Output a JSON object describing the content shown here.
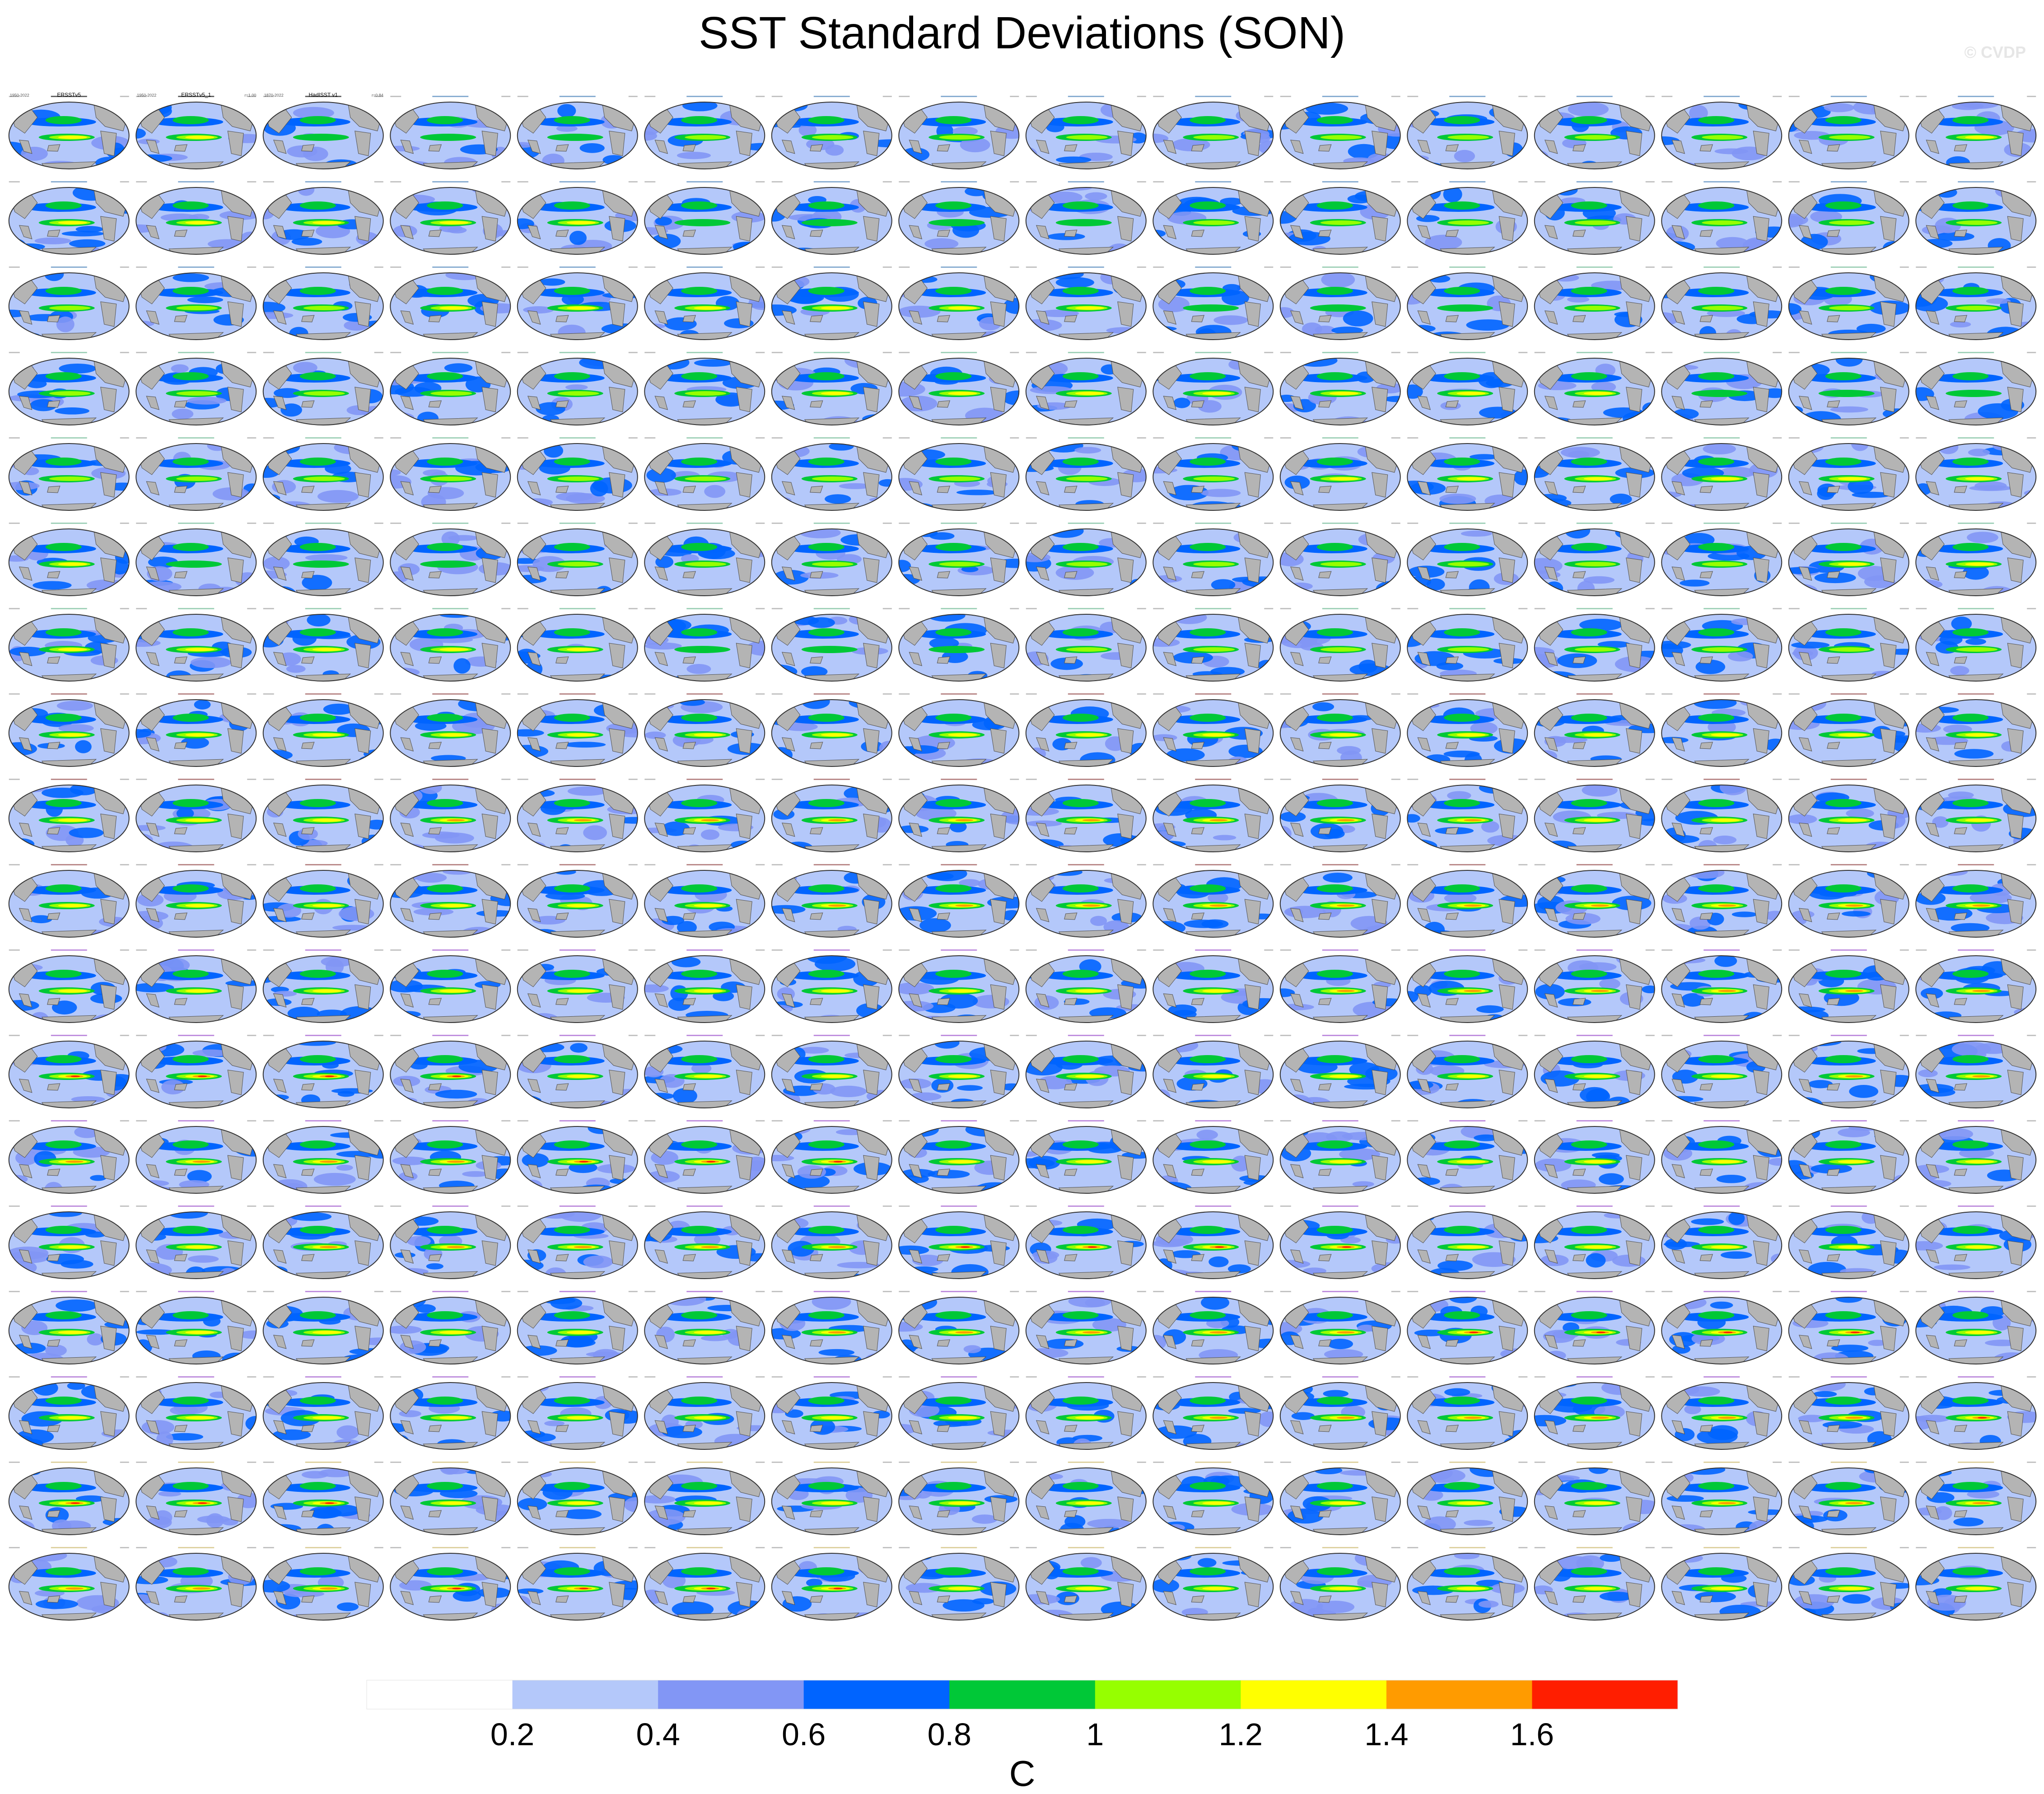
{
  "page": {
    "title": "SST Standard Deviations (SON)",
    "watermark": "© CVDP"
  },
  "colors": {
    "ocean_levels": [
      "#ffffff",
      "#b4c8fa",
      "#8296f5",
      "#0064ff",
      "#00c837",
      "#96ff00",
      "#ffff00",
      "#ff9b00",
      "#ff1e00",
      "#c80000"
    ],
    "land": "#b4b4b4",
    "coast": "#505050",
    "obs_label": "#000000",
    "model_label": "#3c78b4",
    "canesm_label": "#64b48c",
    "cesm1_label": "#8c3c3c",
    "cesm2_label": "#9646c8",
    "other_label": "#c8b464"
  },
  "chart_data": {
    "type": "heatmap",
    "title": "SST Standard Deviations (SON)",
    "grid": {
      "rows": 18,
      "cols": 16
    },
    "panels_note": "Small-multiple global maps of SST standard deviation; first three panels are observations (ERSSTv5, ERSSTv5.1, HadISST v1), remainder are model ensemble members.",
    "observation_panels": [
      {
        "label": "ERSSTv5",
        "years": "1950-2022"
      },
      {
        "label": "ERSSTv5_1",
        "years": "1950-2022",
        "value": "r=1.00"
      },
      {
        "label": "HadISST v1",
        "years": "1870-2022",
        "value": "r=0.84"
      }
    ],
    "colorbar": {
      "levels": [
        0.2,
        0.4,
        0.6,
        0.8,
        1,
        1.2,
        1.4,
        1.6
      ],
      "tick_labels": [
        "0.2",
        "0.4",
        "0.6",
        "0.8",
        "1",
        "1.2",
        "1.4",
        "1.6"
      ],
      "units": "C",
      "colors": [
        "#ffffff",
        "#b4c8fa",
        "#8296f5",
        "#0064ff",
        "#00c837",
        "#96ff00",
        "#ffff00",
        "#ff9b00",
        "#ff1e00"
      ]
    }
  }
}
